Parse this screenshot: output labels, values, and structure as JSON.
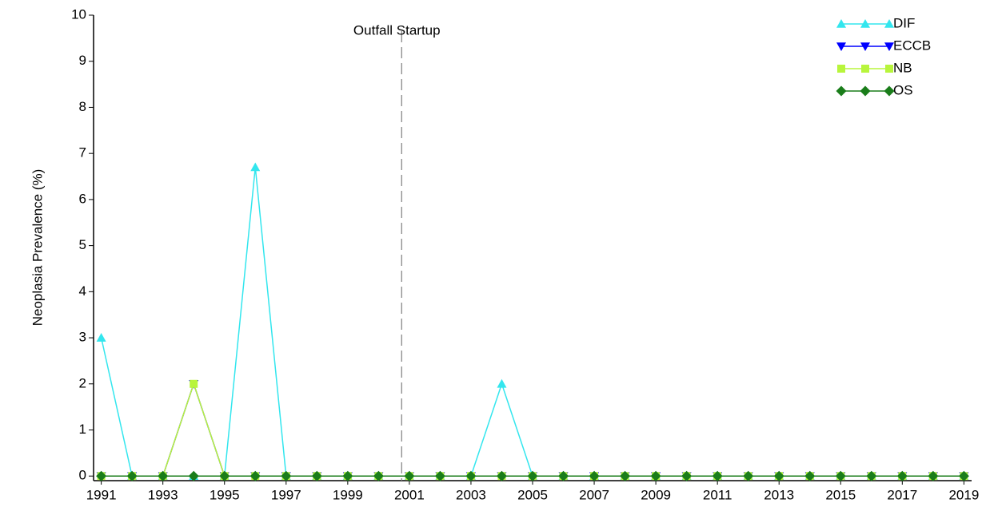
{
  "chart_data": {
    "type": "line",
    "ylabel": "Neoplasia Prevalence (%)",
    "x": [
      1991,
      1992,
      1993,
      1994,
      1995,
      1996,
      1997,
      1998,
      1999,
      2000,
      2001,
      2002,
      2003,
      2004,
      2005,
      2006,
      2007,
      2008,
      2009,
      2010,
      2011,
      2012,
      2013,
      2014,
      2015,
      2016,
      2017,
      2018,
      2019
    ],
    "series": [
      {
        "name": "DIF",
        "color": "#33e6ee",
        "marker": "triangle-up",
        "values": [
          3,
          0,
          0,
          0,
          0,
          6.7,
          0,
          0,
          0,
          0,
          0,
          0,
          0,
          2,
          0,
          0,
          0,
          0,
          0,
          0,
          0,
          0,
          0,
          0,
          0,
          0,
          0,
          0,
          0
        ]
      },
      {
        "name": "ECCB",
        "color": "#0000ff",
        "marker": "triangle-down",
        "values": [
          0,
          0,
          0,
          2,
          0,
          0,
          0,
          0,
          0,
          0,
          0,
          0,
          0,
          0,
          0,
          0,
          0,
          0,
          0,
          0,
          0,
          0,
          0,
          0,
          0,
          0,
          0,
          0,
          0
        ]
      },
      {
        "name": "NB",
        "color": "#b8f53c",
        "marker": "square",
        "values": [
          0,
          0,
          0,
          2,
          0,
          0,
          0,
          0,
          0,
          0,
          0,
          0,
          0,
          0,
          0,
          0,
          0,
          0,
          0,
          0,
          0,
          0,
          0,
          0,
          0,
          0,
          0,
          0,
          0
        ]
      },
      {
        "name": "OS",
        "color": "#1a7d1a",
        "marker": "diamond",
        "values": [
          0,
          0,
          0,
          0,
          0,
          0,
          0,
          0,
          0,
          0,
          0,
          0,
          0,
          0,
          0,
          0,
          0,
          0,
          0,
          0,
          0,
          0,
          0,
          0,
          0,
          0,
          0,
          0,
          0
        ]
      }
    ],
    "annotations": [
      {
        "text": "Outfall Startup",
        "x": 2000.75
      }
    ],
    "xlim": [
      1990.75,
      2019.25
    ],
    "xticks": [
      1991,
      1993,
      1995,
      1997,
      1999,
      2001,
      2003,
      2005,
      2007,
      2009,
      2011,
      2013,
      2015,
      2017,
      2019
    ],
    "ylim": [
      -0.1,
      10
    ],
    "yticks": [
      0,
      1,
      2,
      3,
      4,
      5,
      6,
      7,
      8,
      9,
      10
    ],
    "grid": false,
    "legend": "upper right"
  }
}
